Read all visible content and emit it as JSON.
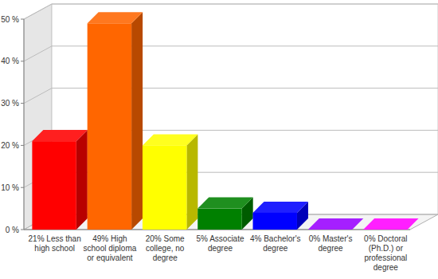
{
  "chart_data": {
    "type": "bar",
    "categories": [
      "21% Less than high school",
      "49% High school diploma or equivalent",
      "20% Some college, no degree",
      "5% Associate degree",
      "4% Bachelor's degree",
      "0% Master's degree",
      "0% Doctoral (Ph.D.) or professional degree"
    ],
    "values": [
      21,
      49,
      20,
      5,
      4,
      0,
      0
    ],
    "colors": [
      "#ff0000",
      "#ff6600",
      "#ffff00",
      "#008000",
      "#0000ff",
      "#9900ff",
      "#ff00ff"
    ],
    "ylim": [
      0,
      50
    ],
    "yticks": [
      {
        "value": 0,
        "label": "0 %"
      },
      {
        "value": 10,
        "label": "10 %"
      },
      {
        "value": 20,
        "label": "20 %"
      },
      {
        "value": 30,
        "label": "30 %"
      },
      {
        "value": 40,
        "label": "40 %"
      },
      {
        "value": 50,
        "label": "50 %"
      }
    ],
    "grid": true
  }
}
